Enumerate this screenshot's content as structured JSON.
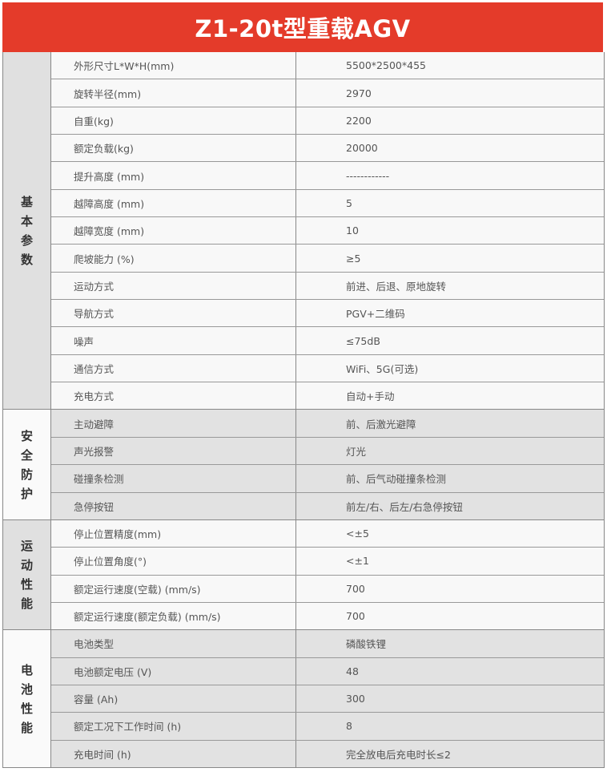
{
  "title": "Z1-20t型重载AGV",
  "colors": {
    "header": "#e43b2a"
  },
  "groups": [
    {
      "label": "基本参数",
      "rows": [
        {
          "label": "外形尺寸L*W*H(mm)",
          "value": "5500*2500*455"
        },
        {
          "label": "旋转半径(mm)",
          "value": "2970"
        },
        {
          "label": "自重(kg)",
          "value": "2200"
        },
        {
          "label": "额定负载(kg)",
          "value": "20000"
        },
        {
          "label": "提升高度 (mm)",
          "value": "------------"
        },
        {
          "label": "越障高度 (mm)",
          "value": "5"
        },
        {
          "label": "越障宽度 (mm)",
          "value": "10"
        },
        {
          "label": "爬坡能力 (%)",
          "value": "≥5"
        },
        {
          "label": "运动方式",
          "value": "前进、后退、原地旋转"
        },
        {
          "label": "导航方式",
          "value": "PGV+二维码"
        },
        {
          "label": "噪声",
          "value": "≤75dB"
        },
        {
          "label": "通信方式",
          "value": "WiFi、5G(可选)"
        },
        {
          "label": "充电方式",
          "value": "自动+手动"
        }
      ]
    },
    {
      "label": "安全防护",
      "rows": [
        {
          "label": "主动避障",
          "value": "前、后激光避障"
        },
        {
          "label": "声光报警",
          "value": "灯光"
        },
        {
          "label": "碰撞条检测",
          "value": "前、后气动碰撞条检测"
        },
        {
          "label": "急停按钮",
          "value": "前左/右、后左/右急停按钮"
        }
      ]
    },
    {
      "label": "运动性能",
      "rows": [
        {
          "label": "停止位置精度(mm)",
          "value": "<±5"
        },
        {
          "label": "停止位置角度(°)",
          "value": "<±1"
        },
        {
          "label": "额定运行速度(空载) (mm/s)",
          "value": "700"
        },
        {
          "label": "额定运行速度(额定负载) (mm/s)",
          "value": "700"
        }
      ]
    },
    {
      "label": "电池性能",
      "rows": [
        {
          "label": "电池类型",
          "value": "磷酸铁锂"
        },
        {
          "label": "电池额定电压 (V)",
          "value": "48"
        },
        {
          "label": "容量 (Ah)",
          "value": "300"
        },
        {
          "label": "额定工况下工作时间 (h)",
          "value": "8"
        },
        {
          "label": "充电时间 (h)",
          "value": "完全放电后充电时长≤2"
        }
      ]
    }
  ]
}
